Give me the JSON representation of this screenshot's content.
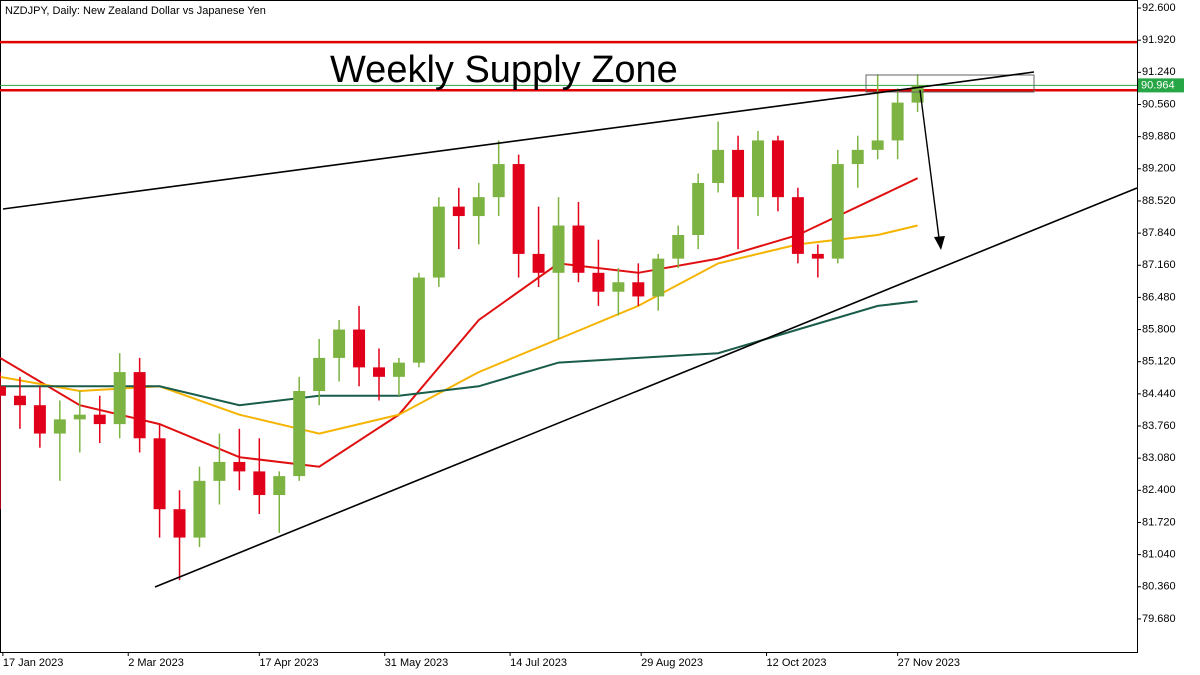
{
  "chart_data": {
    "type": "candlestick",
    "title": "NZDJPY, Daily:  New Zealand Dollar vs Japanese Yen",
    "annotation": "Weekly Supply Zone",
    "x": [
      "2023-01-16",
      "2023-01-23",
      "2023-01-30",
      "2023-02-06",
      "2023-02-13",
      "2023-02-20",
      "2023-02-27",
      "2023-03-06",
      "2023-03-13",
      "2023-03-20",
      "2023-03-27",
      "2023-04-03",
      "2023-04-10",
      "2023-04-17",
      "2023-04-24",
      "2023-05-01",
      "2023-05-08",
      "2023-05-15",
      "2023-05-22",
      "2023-05-29",
      "2023-06-05",
      "2023-06-12",
      "2023-06-19",
      "2023-06-26",
      "2023-07-03",
      "2023-07-10",
      "2023-07-17",
      "2023-07-24",
      "2023-07-31",
      "2023-08-07",
      "2023-08-14",
      "2023-08-21",
      "2023-08-28",
      "2023-09-04",
      "2023-09-11",
      "2023-09-18",
      "2023-09-25",
      "2023-10-02",
      "2023-10-09",
      "2023-10-16",
      "2023-10-23",
      "2023-10-30",
      "2023-11-06",
      "2023-11-13",
      "2023-11-20",
      "2023-11-27",
      "2023-12-04"
    ],
    "open": [
      84.6,
      84.4,
      84.2,
      83.6,
      83.9,
      84.0,
      83.8,
      84.9,
      83.5,
      82.0,
      81.4,
      82.6,
      83.0,
      82.8,
      82.3,
      82.7,
      84.5,
      85.2,
      85.8,
      85.0,
      84.8,
      85.1,
      86.9,
      88.4,
      88.2,
      88.6,
      89.3,
      87.4,
      87.0,
      88.0,
      87.0,
      86.6,
      86.8,
      86.5,
      87.3,
      87.8,
      88.9,
      89.6,
      88.6,
      89.8,
      88.6,
      87.4,
      87.3,
      89.3,
      89.6,
      89.8,
      90.6
    ],
    "high": [
      84.9,
      84.8,
      84.6,
      84.3,
      84.5,
      84.4,
      85.3,
      85.2,
      83.8,
      82.4,
      82.9,
      83.6,
      83.7,
      83.5,
      82.8,
      84.8,
      85.6,
      86.0,
      86.3,
      85.4,
      85.2,
      87.0,
      88.6,
      88.8,
      88.9,
      89.8,
      89.5,
      88.4,
      88.6,
      88.5,
      87.7,
      87.1,
      87.2,
      87.4,
      88.0,
      89.1,
      90.2,
      89.9,
      90.0,
      89.9,
      88.8,
      87.6,
      89.6,
      89.9,
      91.2,
      90.9,
      91.2
    ],
    "low": [
      82.0,
      83.7,
      83.3,
      82.6,
      83.2,
      83.4,
      83.5,
      83.2,
      81.4,
      80.5,
      81.2,
      82.1,
      82.4,
      81.9,
      81.5,
      82.6,
      84.2,
      84.7,
      84.6,
      84.3,
      84.4,
      85.0,
      86.7,
      87.5,
      87.6,
      88.2,
      86.9,
      86.7,
      85.6,
      86.8,
      86.3,
      86.1,
      86.3,
      86.2,
      87.1,
      87.5,
      88.7,
      87.5,
      88.2,
      88.3,
      87.2,
      86.9,
      87.2,
      88.8,
      89.4,
      89.4,
      90.4
    ],
    "close": [
      84.4,
      84.2,
      83.6,
      83.9,
      84.0,
      83.8,
      84.9,
      83.5,
      82.0,
      81.4,
      82.6,
      83.0,
      82.8,
      82.3,
      82.7,
      84.5,
      85.2,
      85.8,
      85.0,
      84.8,
      85.1,
      86.9,
      88.4,
      88.2,
      88.6,
      89.3,
      87.4,
      87.0,
      88.0,
      87.0,
      86.6,
      86.8,
      86.5,
      87.3,
      87.8,
      88.9,
      89.6,
      88.6,
      89.8,
      88.6,
      87.4,
      87.3,
      89.3,
      89.6,
      89.8,
      90.6,
      90.964
    ],
    "up_color": "#7cb342",
    "down_color": "#e0001a",
    "moving_averages": [
      {
        "color": "#e01010",
        "x": [
          "2023-01-16",
          "2023-02-13",
          "2023-03-13",
          "2023-04-10",
          "2023-05-08",
          "2023-06-05",
          "2023-07-03",
          "2023-07-31",
          "2023-08-28",
          "2023-09-25",
          "2023-10-23",
          "2023-11-20",
          "2023-12-04"
        ],
        "values": [
          85.2,
          84.2,
          83.8,
          83.1,
          82.9,
          84.0,
          86.0,
          87.2,
          87.0,
          87.3,
          87.8,
          88.6,
          89.0
        ]
      },
      {
        "color": "#f5b400",
        "x": [
          "2023-01-16",
          "2023-02-13",
          "2023-03-13",
          "2023-04-10",
          "2023-05-08",
          "2023-06-05",
          "2023-07-03",
          "2023-07-31",
          "2023-08-28",
          "2023-09-25",
          "2023-10-23",
          "2023-11-20",
          "2023-12-04"
        ],
        "values": [
          84.8,
          84.5,
          84.6,
          84.0,
          83.6,
          84.0,
          84.9,
          85.6,
          86.3,
          87.2,
          87.6,
          87.8,
          88.0
        ]
      },
      {
        "color": "#1a5c4a",
        "x": [
          "2023-01-16",
          "2023-03-13",
          "2023-04-10",
          "2023-05-08",
          "2023-06-05",
          "2023-07-03",
          "2023-07-31",
          "2023-08-28",
          "2023-09-25",
          "2023-10-23",
          "2023-11-20",
          "2023-12-04"
        ],
        "values": [
          84.6,
          84.6,
          84.2,
          84.4,
          84.4,
          84.6,
          85.1,
          85.2,
          85.3,
          85.8,
          86.3,
          86.4
        ]
      }
    ],
    "levels": [
      {
        "value": 91.88,
        "color": "#e00000"
      },
      {
        "value": 90.86,
        "color": "#e00000"
      }
    ],
    "current_price": {
      "value": 90.964,
      "label": "90.964",
      "color": "#26a644"
    },
    "xlim": [
      "2023-01-16",
      "2024-02-19"
    ],
    "xticks": [
      {
        "value": "2023-01-17",
        "label": "17 Jan 2023"
      },
      {
        "value": "2023-03-02",
        "label": "2 Mar 2023"
      },
      {
        "value": "2023-04-17",
        "label": "17 Apr 2023"
      },
      {
        "value": "2023-05-31",
        "label": "31 May 2023"
      },
      {
        "value": "2023-07-14",
        "label": "14 Jul 2023"
      },
      {
        "value": "2023-08-29",
        "label": "29 Aug 2023"
      },
      {
        "value": "2023-10-12",
        "label": "12 Oct 2023"
      },
      {
        "value": "2023-11-27",
        "label": "27 Nov 2023"
      }
    ],
    "ylim": [
      78.98,
      92.77
    ],
    "yticks": [
      {
        "value": 92.6,
        "label": "92.600"
      },
      {
        "value": 91.92,
        "label": "91.920"
      },
      {
        "value": 91.24,
        "label": "91.240"
      },
      {
        "value": 90.56,
        "label": "90.560"
      },
      {
        "value": 89.88,
        "label": "89.880"
      },
      {
        "value": 89.2,
        "label": "89.200"
      },
      {
        "value": 88.52,
        "label": "88.520"
      },
      {
        "value": 87.84,
        "label": "87.840"
      },
      {
        "value": 87.16,
        "label": "87.160"
      },
      {
        "value": 86.48,
        "label": "86.480"
      },
      {
        "value": 85.8,
        "label": "85.800"
      },
      {
        "value": 85.12,
        "label": "85.120"
      },
      {
        "value": 84.44,
        "label": "84.440"
      },
      {
        "value": 83.76,
        "label": "83.760"
      },
      {
        "value": 83.08,
        "label": "83.080"
      },
      {
        "value": 82.4,
        "label": "82.400"
      },
      {
        "value": 81.72,
        "label": "81.720"
      },
      {
        "value": 81.04,
        "label": "81.040"
      },
      {
        "value": 80.36,
        "label": "80.360"
      },
      {
        "value": 79.68,
        "label": "79.680"
      }
    ]
  }
}
